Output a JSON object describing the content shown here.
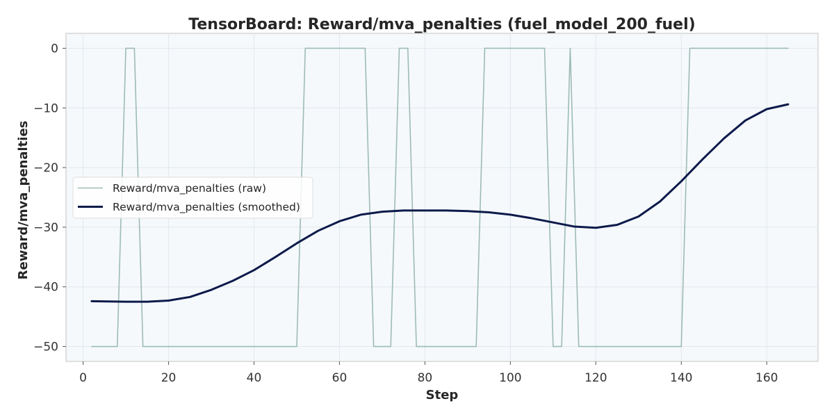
{
  "chart_data": {
    "type": "line",
    "title": "TensorBoard: Reward/mva_penalties (fuel_model_200_fuel)",
    "xlabel": "Step",
    "ylabel": "Reward/mva_penalties",
    "xlim": [
      -4,
      172
    ],
    "ylim": [
      -52.5,
      2.5
    ],
    "x_ticks": [
      0,
      20,
      40,
      60,
      80,
      100,
      120,
      140,
      160
    ],
    "y_ticks": [
      0,
      -10,
      -20,
      -30,
      -40,
      -50
    ],
    "grid": true,
    "legend_position": "center-left",
    "series": [
      {
        "name": "Reward/mva_penalties (raw)",
        "color": "#9dbbb3",
        "x": [
          2,
          8,
          10,
          12,
          14,
          50,
          52,
          66,
          68,
          72,
          74,
          76,
          78,
          92,
          94,
          108,
          110,
          112,
          114,
          116,
          140,
          142,
          165
        ],
        "y": [
          -50,
          -50,
          0,
          0,
          -50,
          -50,
          0,
          0,
          -50,
          -50,
          0,
          0,
          -50,
          -50,
          0,
          0,
          -50,
          -50,
          0,
          -50,
          -50,
          0,
          0
        ]
      },
      {
        "name": "Reward/mva_penalties (smoothed)",
        "color": "#0d1a4a",
        "x": [
          2,
          10,
          15,
          20,
          25,
          30,
          35,
          40,
          45,
          50,
          55,
          60,
          65,
          70,
          75,
          80,
          85,
          90,
          95,
          100,
          105,
          110,
          115,
          120,
          125,
          130,
          135,
          140,
          145,
          150,
          155,
          160,
          165
        ],
        "y": [
          -42.4,
          -42.5,
          -42.5,
          -42.3,
          -41.7,
          -40.5,
          -39.0,
          -37.2,
          -35.0,
          -32.7,
          -30.6,
          -29.0,
          -27.9,
          -27.4,
          -27.2,
          -27.2,
          -27.2,
          -27.3,
          -27.5,
          -27.9,
          -28.5,
          -29.2,
          -29.9,
          -30.1,
          -29.6,
          -28.2,
          -25.7,
          -22.3,
          -18.6,
          -15.1,
          -12.1,
          -10.2,
          -9.4
        ]
      }
    ]
  }
}
